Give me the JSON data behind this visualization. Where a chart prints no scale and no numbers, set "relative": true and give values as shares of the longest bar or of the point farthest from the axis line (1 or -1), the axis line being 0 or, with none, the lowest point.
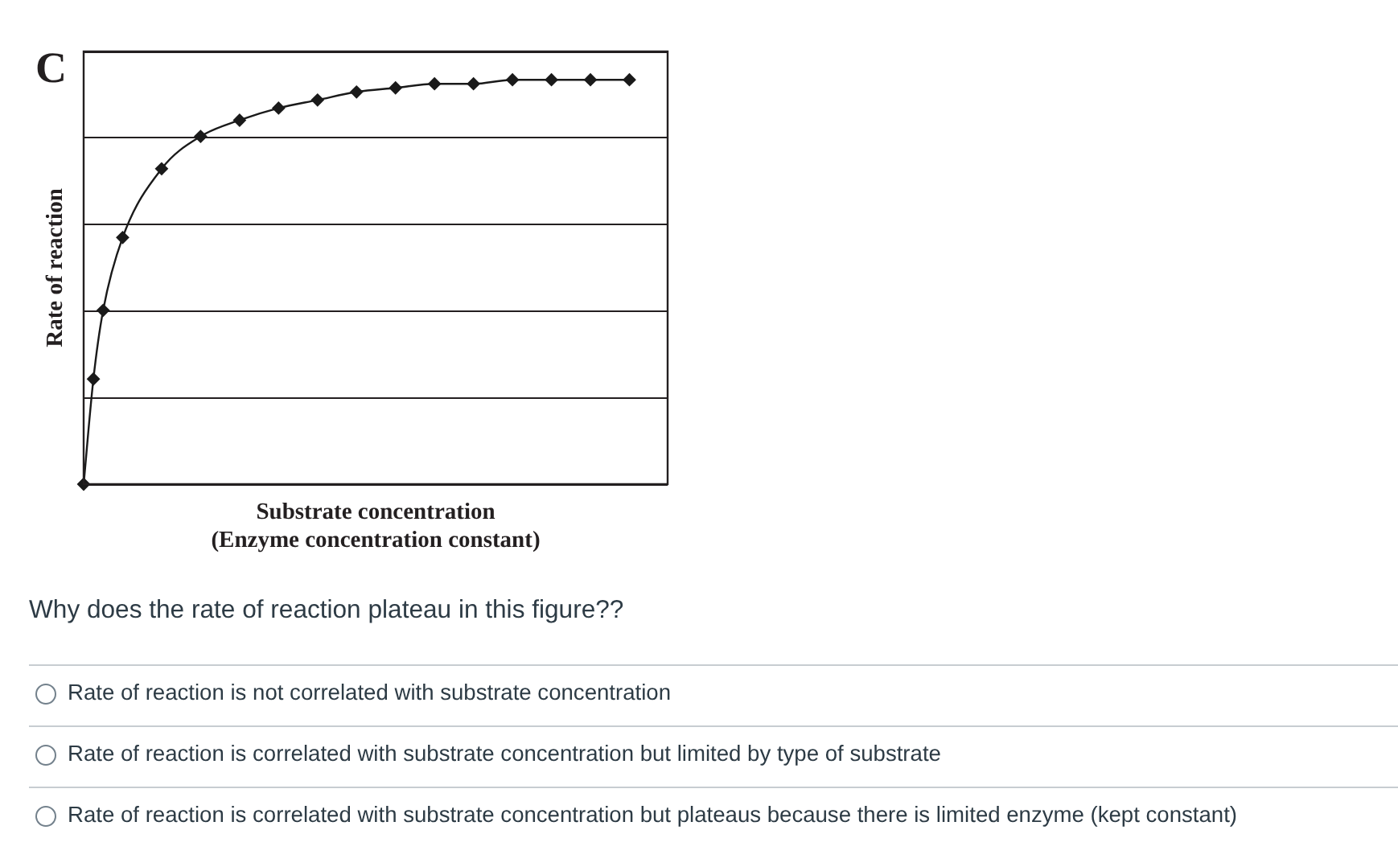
{
  "chart_data": {
    "type": "line",
    "title": "C",
    "xlabel": "Substrate concentration\n(Enzyme concentration constant)",
    "ylabel": "Rate of reaction",
    "relative": true,
    "categories": [
      null,
      null,
      null,
      null,
      null,
      null,
      null,
      null,
      null,
      null,
      null,
      null,
      null,
      null,
      null,
      null,
      null,
      null,
      null,
      null,
      null,
      null,
      null,
      null,
      null,
      null,
      null,
      null,
      null,
      null,
      null,
      null,
      null,
      null,
      null,
      null,
      null,
      null,
      null,
      null,
      null,
      null,
      null,
      null,
      null,
      null,
      null,
      null,
      null,
      null,
      null,
      null,
      null,
      null,
      null,
      null,
      null
    ],
    "values": [
      0,
      0.26,
      0.43,
      null,
      0.61,
      null,
      null,
      null,
      0.78,
      null,
      null,
      null,
      0.86,
      null,
      null,
      null,
      0.9,
      null,
      null,
      null,
      0.93,
      null,
      null,
      null,
      0.95,
      null,
      null,
      null,
      0.97,
      null,
      null,
      null,
      0.98,
      null,
      null,
      null,
      0.99,
      null,
      null,
      null,
      0.99,
      null,
      null,
      null,
      1,
      null,
      null,
      null,
      1,
      null,
      null,
      null,
      1,
      null,
      null,
      null,
      1
    ],
    "color": "#1a1a1a",
    "marker": "diamond",
    "line_style": "solid",
    "grid": "y",
    "legend": false,
    "annotations": [
      "Why does the rate of reaction plateau in this figure??",
      "Rate of reaction is not correlated with substrate concentration",
      "Rate of reaction is correlated with substrate concentration but limited by type of substrate",
      "Rate of reaction is correlated with substrate concentration but plateaus because there is limited enzyme (kept constant)"
    ]
  }
}
